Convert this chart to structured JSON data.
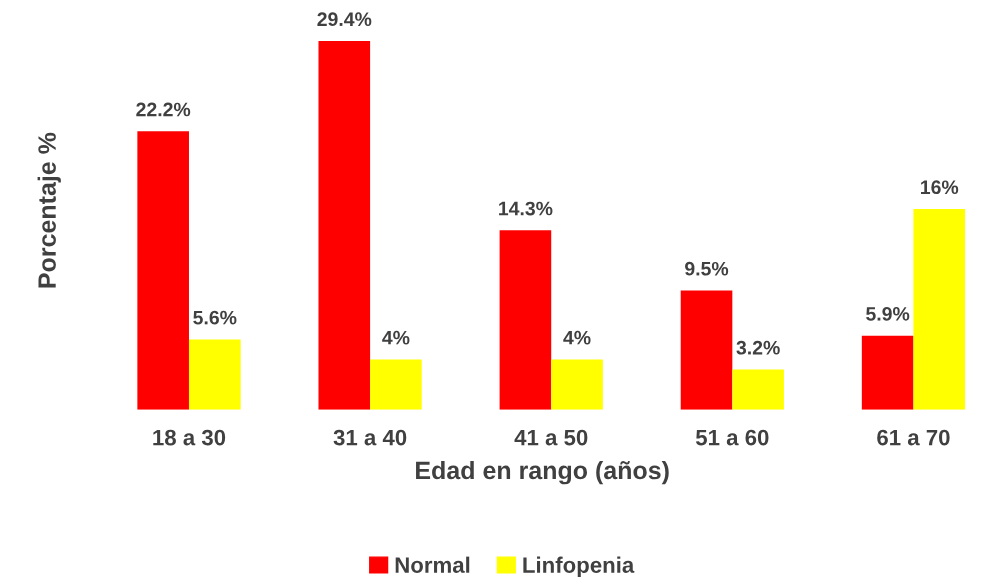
{
  "chart_data": {
    "type": "bar",
    "xlabel": "Edad en rango (años)",
    "ylabel": "Porcentaje %",
    "categories": [
      "18 a 30",
      "31 a 40",
      "41 a 50",
      "51 a 60",
      "61 a 70"
    ],
    "series": [
      {
        "name": "Normal",
        "color": "#ff0000",
        "values": [
          22.2,
          29.4,
          14.3,
          9.5,
          5.9
        ],
        "value_labels": [
          "22.2%",
          "29.4%",
          "14.3%",
          "9.5%",
          "5.9%"
        ]
      },
      {
        "name": "Linfopenia",
        "color": "#ffff00",
        "values": [
          5.6,
          4,
          4,
          3.2,
          16
        ],
        "value_labels": [
          "5.6%",
          "4%",
          "4%",
          "3.2%",
          "16%"
        ]
      }
    ],
    "legend": "bottom",
    "tick_labels": "x",
    "grid": false
  }
}
